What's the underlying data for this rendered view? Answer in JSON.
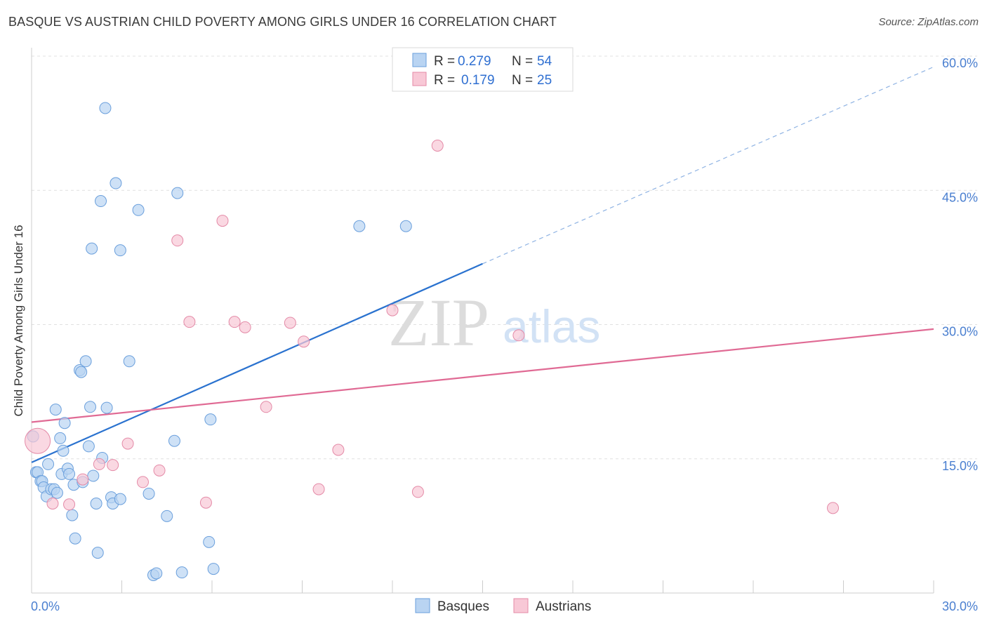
{
  "title": "BASQUE VS AUSTRIAN CHILD POVERTY AMONG GIRLS UNDER 16 CORRELATION CHART",
  "source": "Source: ZipAtlas.com",
  "watermark": {
    "zip": "ZIP",
    "atlas": "atlas"
  },
  "colors": {
    "blue_fill": "#b9d4f2",
    "blue_stroke": "#6a9fdc",
    "blue_line": "#2a72cf",
    "pink_fill": "#f8c8d6",
    "pink_stroke": "#e48aa7",
    "pink_line": "#e06a94",
    "tick_text": "#4a7fd0",
    "grid": "#e0e0e0"
  },
  "legend": {
    "rows": [
      {
        "r_label": "R =",
        "r_value": "0.279",
        "n_label": "N =",
        "n_value": "54",
        "series": "blue"
      },
      {
        "r_label": "R =",
        "r_value": "0.179",
        "n_label": "N =",
        "n_value": "25",
        "series": "pink"
      }
    ]
  },
  "bottom_legend": [
    {
      "label": "Basques",
      "series": "blue"
    },
    {
      "label": "Austrians",
      "series": "pink"
    }
  ],
  "chart_data": {
    "type": "scatter",
    "title": "BASQUE VS AUSTRIAN CHILD POVERTY AMONG GIRLS UNDER 16 CORRELATION CHART",
    "xlabel": "",
    "ylabel": "Child Poverty Among Girls Under 16",
    "xlim": [
      0,
      30
    ],
    "ylim": [
      0,
      60
    ],
    "x_ticks": [
      {
        "value": 0,
        "label": "0.0%"
      },
      {
        "value": 30,
        "label": "30.0%"
      }
    ],
    "y_ticks": [
      {
        "value": 15,
        "label": "15.0%"
      },
      {
        "value": 30,
        "label": "30.0%"
      },
      {
        "value": 45,
        "label": "45.0%"
      },
      {
        "value": 60,
        "label": "60.0%"
      }
    ],
    "grid": true,
    "legend_position": "top-center",
    "series": [
      {
        "name": "Basques",
        "color": "#6a9fdc",
        "points": [
          [
            0.05,
            17.5
          ],
          [
            0.15,
            13.5
          ],
          [
            0.2,
            13.5
          ],
          [
            0.3,
            12.5
          ],
          [
            0.35,
            12.5
          ],
          [
            0.4,
            11.8
          ],
          [
            0.5,
            10.8
          ],
          [
            0.55,
            14.4
          ],
          [
            0.65,
            11.6
          ],
          [
            0.75,
            11.6
          ],
          [
            0.8,
            20.5
          ],
          [
            0.85,
            11.2
          ],
          [
            0.95,
            17.3
          ],
          [
            1.0,
            13.3
          ],
          [
            1.05,
            15.9
          ],
          [
            1.1,
            19.0
          ],
          [
            1.2,
            13.9
          ],
          [
            1.25,
            13.3
          ],
          [
            1.35,
            8.7
          ],
          [
            1.4,
            12.1
          ],
          [
            1.45,
            6.1
          ],
          [
            1.6,
            24.9
          ],
          [
            1.65,
            24.7
          ],
          [
            1.7,
            12.4
          ],
          [
            1.8,
            25.9
          ],
          [
            1.9,
            16.4
          ],
          [
            1.95,
            20.8
          ],
          [
            2.0,
            38.5
          ],
          [
            2.05,
            13.1
          ],
          [
            2.15,
            10.0
          ],
          [
            2.2,
            4.5
          ],
          [
            2.3,
            43.8
          ],
          [
            2.35,
            15.1
          ],
          [
            2.45,
            54.2
          ],
          [
            2.5,
            20.7
          ],
          [
            2.65,
            10.7
          ],
          [
            2.7,
            10.0
          ],
          [
            2.8,
            45.8
          ],
          [
            2.95,
            10.5
          ],
          [
            3.25,
            25.9
          ],
          [
            3.55,
            42.8
          ],
          [
            3.9,
            11.1
          ],
          [
            4.05,
            2.0
          ],
          [
            4.15,
            2.2
          ],
          [
            4.5,
            8.6
          ],
          [
            4.75,
            17.0
          ],
          [
            4.85,
            44.7
          ],
          [
            5.0,
            2.3
          ],
          [
            5.9,
            5.7
          ],
          [
            5.95,
            19.4
          ],
          [
            6.05,
            2.7
          ],
          [
            10.9,
            41.0
          ],
          [
            12.45,
            41.0
          ],
          [
            2.95,
            38.3
          ]
        ]
      },
      {
        "name": "Austrians",
        "color": "#e48aa7",
        "points": [
          [
            0.2,
            17.0
          ],
          [
            0.7,
            10.0
          ],
          [
            1.25,
            9.9
          ],
          [
            1.7,
            12.7
          ],
          [
            2.25,
            14.4
          ],
          [
            2.7,
            14.3
          ],
          [
            3.2,
            16.7
          ],
          [
            3.7,
            12.4
          ],
          [
            4.25,
            13.7
          ],
          [
            4.85,
            39.4
          ],
          [
            5.25,
            30.3
          ],
          [
            5.8,
            10.1
          ],
          [
            6.35,
            41.6
          ],
          [
            6.75,
            30.3
          ],
          [
            7.1,
            29.7
          ],
          [
            7.8,
            20.8
          ],
          [
            8.6,
            30.2
          ],
          [
            9.05,
            28.1
          ],
          [
            9.55,
            11.6
          ],
          [
            10.2,
            16.0
          ],
          [
            12.0,
            31.6
          ],
          [
            12.85,
            11.3
          ],
          [
            13.5,
            50.0
          ],
          [
            16.2,
            28.8
          ],
          [
            26.65,
            9.5
          ]
        ]
      }
    ],
    "trend_lines": [
      {
        "series": "Basques",
        "x_start": 0,
        "y_start": 14.6,
        "x_solid_end": 15.0,
        "y_solid_end": 36.8,
        "x_dash_end": 30,
        "y_dash_end": 58.8
      },
      {
        "series": "Austrians",
        "x_start": 0,
        "y_start": 19.1,
        "x_end": 30,
        "y_end": 29.5
      }
    ]
  }
}
